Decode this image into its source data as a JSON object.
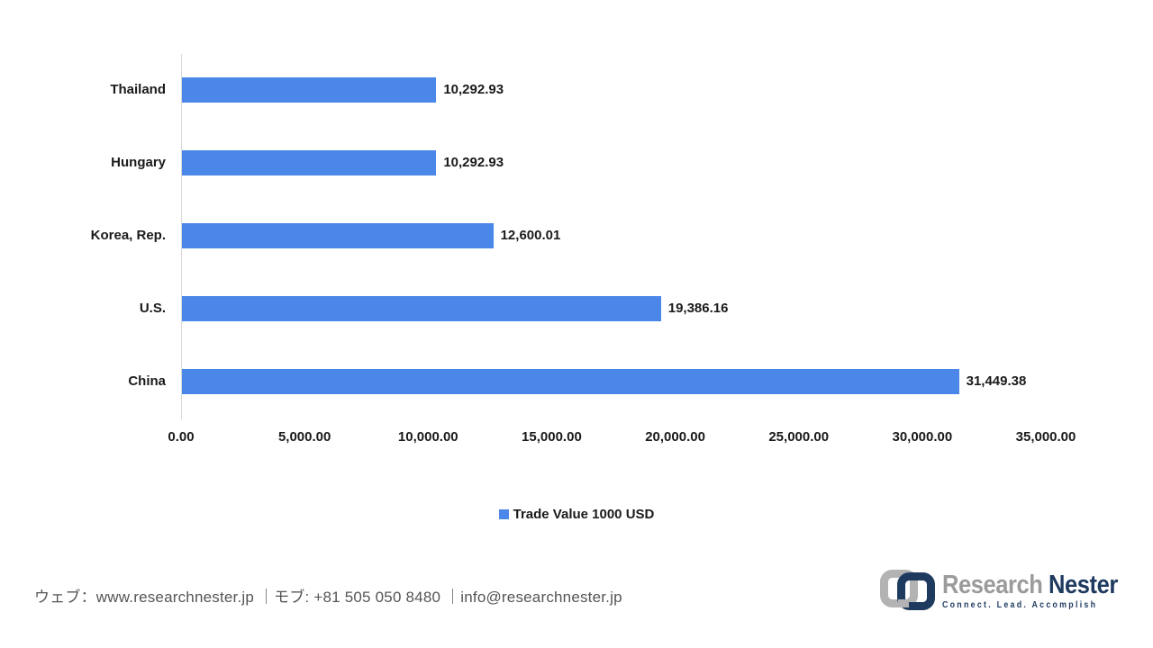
{
  "chart_data": {
    "type": "bar",
    "orientation": "horizontal",
    "title": "",
    "categories": [
      "Thailand",
      "Hungary",
      "Korea, Rep.",
      "U.S.",
      "China"
    ],
    "values": [
      10292.93,
      10292.93,
      12600.01,
      19386.16,
      31449.38
    ],
    "value_labels": [
      "10,292.93",
      "10,292.93",
      "12,600.01",
      "19,386.16",
      "31,449.38"
    ],
    "series_name": "Trade Value 1000 USD",
    "xlim": [
      0,
      35000
    ],
    "xticks": [
      0,
      5000,
      10000,
      15000,
      20000,
      25000,
      30000,
      35000
    ],
    "xtick_labels": [
      "0.00",
      "5,000.00",
      "10,000.00",
      "15,000.00",
      "20,000.00",
      "25,000.00",
      "30,000.00",
      "35,000.00"
    ],
    "bar_color": "#4A87E8",
    "axis_line_color": "#D9D9D9",
    "grid": false,
    "legend_position": "bottom"
  },
  "legend": {
    "label": "Trade Value 1000 USD",
    "swatch_color": "#4A87E8"
  },
  "footer": {
    "contact_text": "ウェブ：www.researchnester.jp ｜モブ: +81 505 050 8480 ｜info@researchnester.jp"
  },
  "logo": {
    "brand_primary": "Research",
    "brand_secondary": "Nester",
    "tagline": "Connect. Lead. Accomplish",
    "primary_color": "#9B9B9B",
    "secondary_color": "#1E3A5F",
    "icon_gray": "#B3B3B3",
    "icon_navy": "#1E3A5F"
  }
}
